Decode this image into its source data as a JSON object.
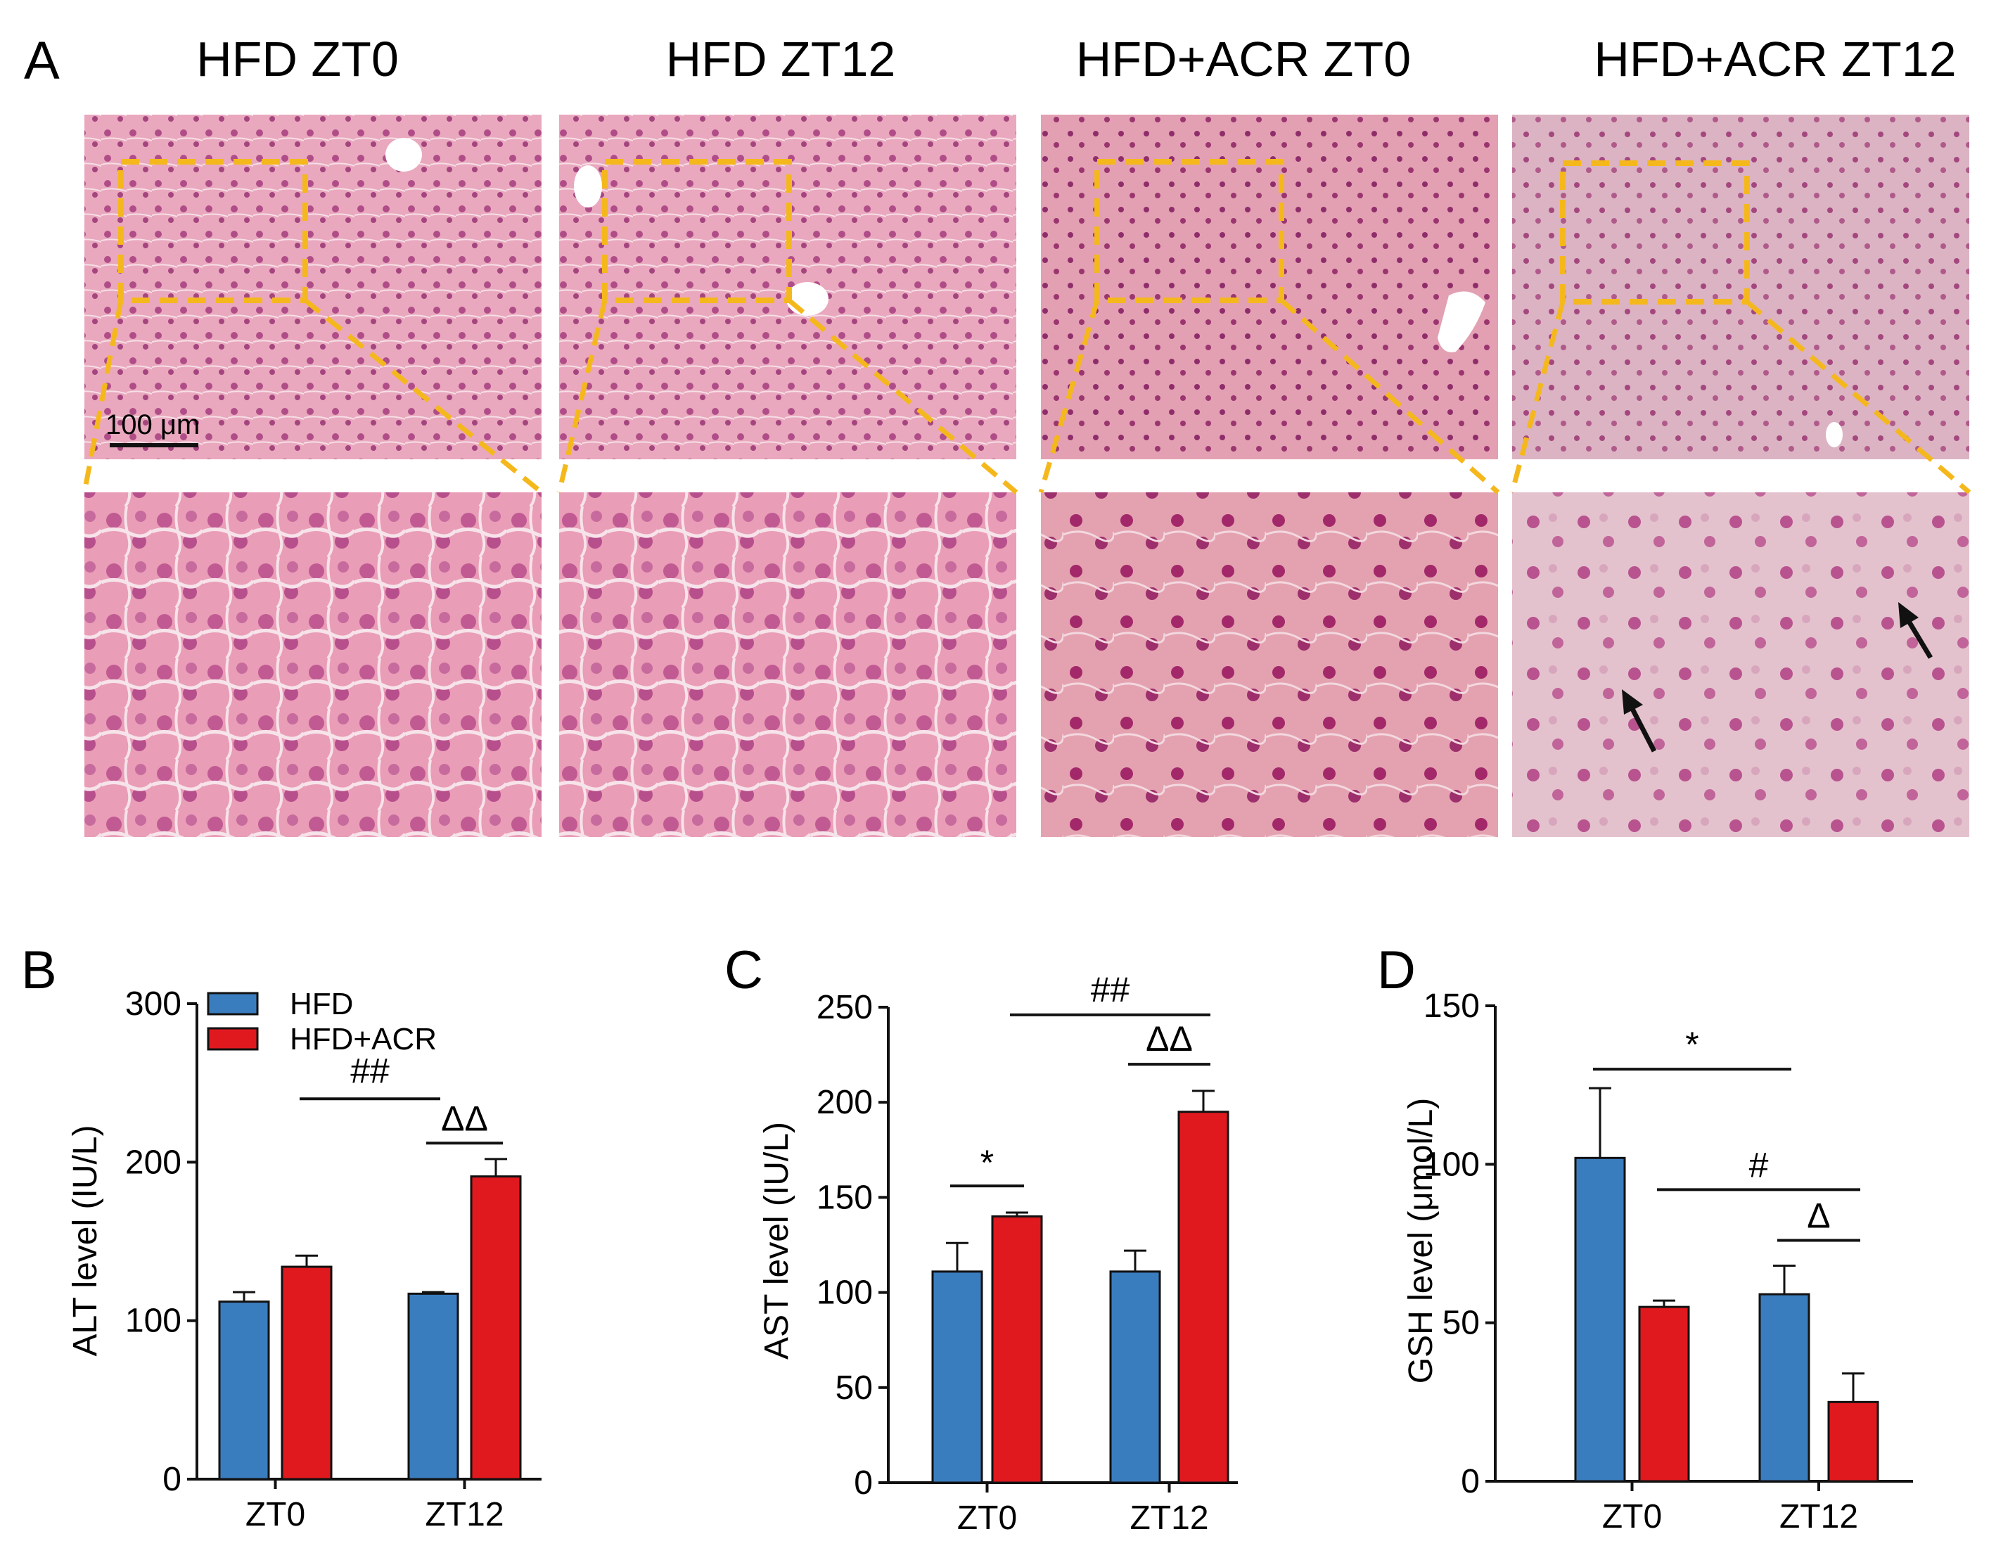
{
  "figure": {
    "panel_a": {
      "label": "A",
      "columns": [
        "HFD ZT0",
        "HFD ZT12",
        "HFD+ACR ZT0",
        "HFD+ACR ZT12"
      ],
      "scale_bar": "100 μm",
      "colors": {
        "box": "#f5b81c",
        "tissue": "#e59bb0",
        "nuclei": "#b04d88",
        "arrow": "#111111"
      }
    },
    "legend": {
      "hfd": "HFD",
      "acr": "HFD+ACR"
    },
    "colors": {
      "hfd": "#3a7dbf",
      "acr": "#e0191f"
    }
  },
  "chart_data": [
    {
      "panel": "B",
      "type": "bar",
      "categories": [
        "ZT0",
        "ZT12"
      ],
      "ylabel": "ALT level (IU/L)",
      "ylim": [
        0,
        300
      ],
      "yticks": [
        "0",
        "100",
        "200",
        "300"
      ],
      "series": [
        {
          "name": "HFD",
          "values": [
            112,
            117
          ],
          "errors": [
            6,
            1
          ]
        },
        {
          "name": "HFD+ACR",
          "values": [
            134,
            191
          ],
          "errors": [
            7,
            11
          ]
        }
      ],
      "annotations": [
        {
          "text": "##",
          "from": [
            0,
            1
          ],
          "to": [
            1,
            0
          ],
          "y": 240,
          "text_y": 250
        },
        {
          "text": "ΔΔ",
          "from": [
            1,
            0
          ],
          "to": [
            1,
            1
          ],
          "y": 212,
          "text_y": 220
        }
      ]
    },
    {
      "panel": "C",
      "type": "bar",
      "categories": [
        "ZT0",
        "ZT12"
      ],
      "ylabel": "AST level (IU/L)",
      "ylim": [
        0,
        250
      ],
      "yticks": [
        "0",
        "50",
        "100",
        "150",
        "200",
        "250"
      ],
      "series": [
        {
          "name": "HFD",
          "values": [
            111,
            111
          ],
          "errors": [
            15,
            11
          ]
        },
        {
          "name": "HFD+ACR",
          "values": [
            140,
            195
          ],
          "errors": [
            2,
            11
          ]
        }
      ],
      "annotations": [
        {
          "text": "*",
          "from": [
            0,
            0
          ],
          "to": [
            0,
            1
          ],
          "y": 156,
          "text_y": 162
        },
        {
          "text": "##",
          "from": [
            0,
            1
          ],
          "to": [
            1,
            1
          ],
          "y": 246,
          "text_y": 253
        },
        {
          "text": "ΔΔ",
          "from": [
            1,
            0
          ],
          "to": [
            1,
            1
          ],
          "y": 220,
          "text_y": 227
        }
      ]
    },
    {
      "panel": "D",
      "type": "bar",
      "categories": [
        "ZT0",
        "ZT12"
      ],
      "ylabel": "GSH level (μmol/L)",
      "ylim": [
        0,
        150
      ],
      "yticks": [
        "0",
        "50",
        "100",
        "150"
      ],
      "series": [
        {
          "name": "HFD",
          "values": [
            102,
            59
          ],
          "errors": [
            22,
            9
          ]
        },
        {
          "name": "HFD+ACR",
          "values": [
            55,
            25
          ],
          "errors": [
            2,
            9
          ]
        }
      ],
      "annotations": [
        {
          "text": "*",
          "from": [
            0,
            0
          ],
          "to": [
            1,
            0
          ],
          "y": 130,
          "text_y": 134
        },
        {
          "text": "#",
          "from": [
            0,
            1
          ],
          "to": [
            1,
            1
          ],
          "y": 92,
          "text_y": 96
        },
        {
          "text": "Δ",
          "from": [
            1,
            0
          ],
          "to": [
            1,
            1
          ],
          "y": 76,
          "text_y": 80
        }
      ]
    }
  ]
}
